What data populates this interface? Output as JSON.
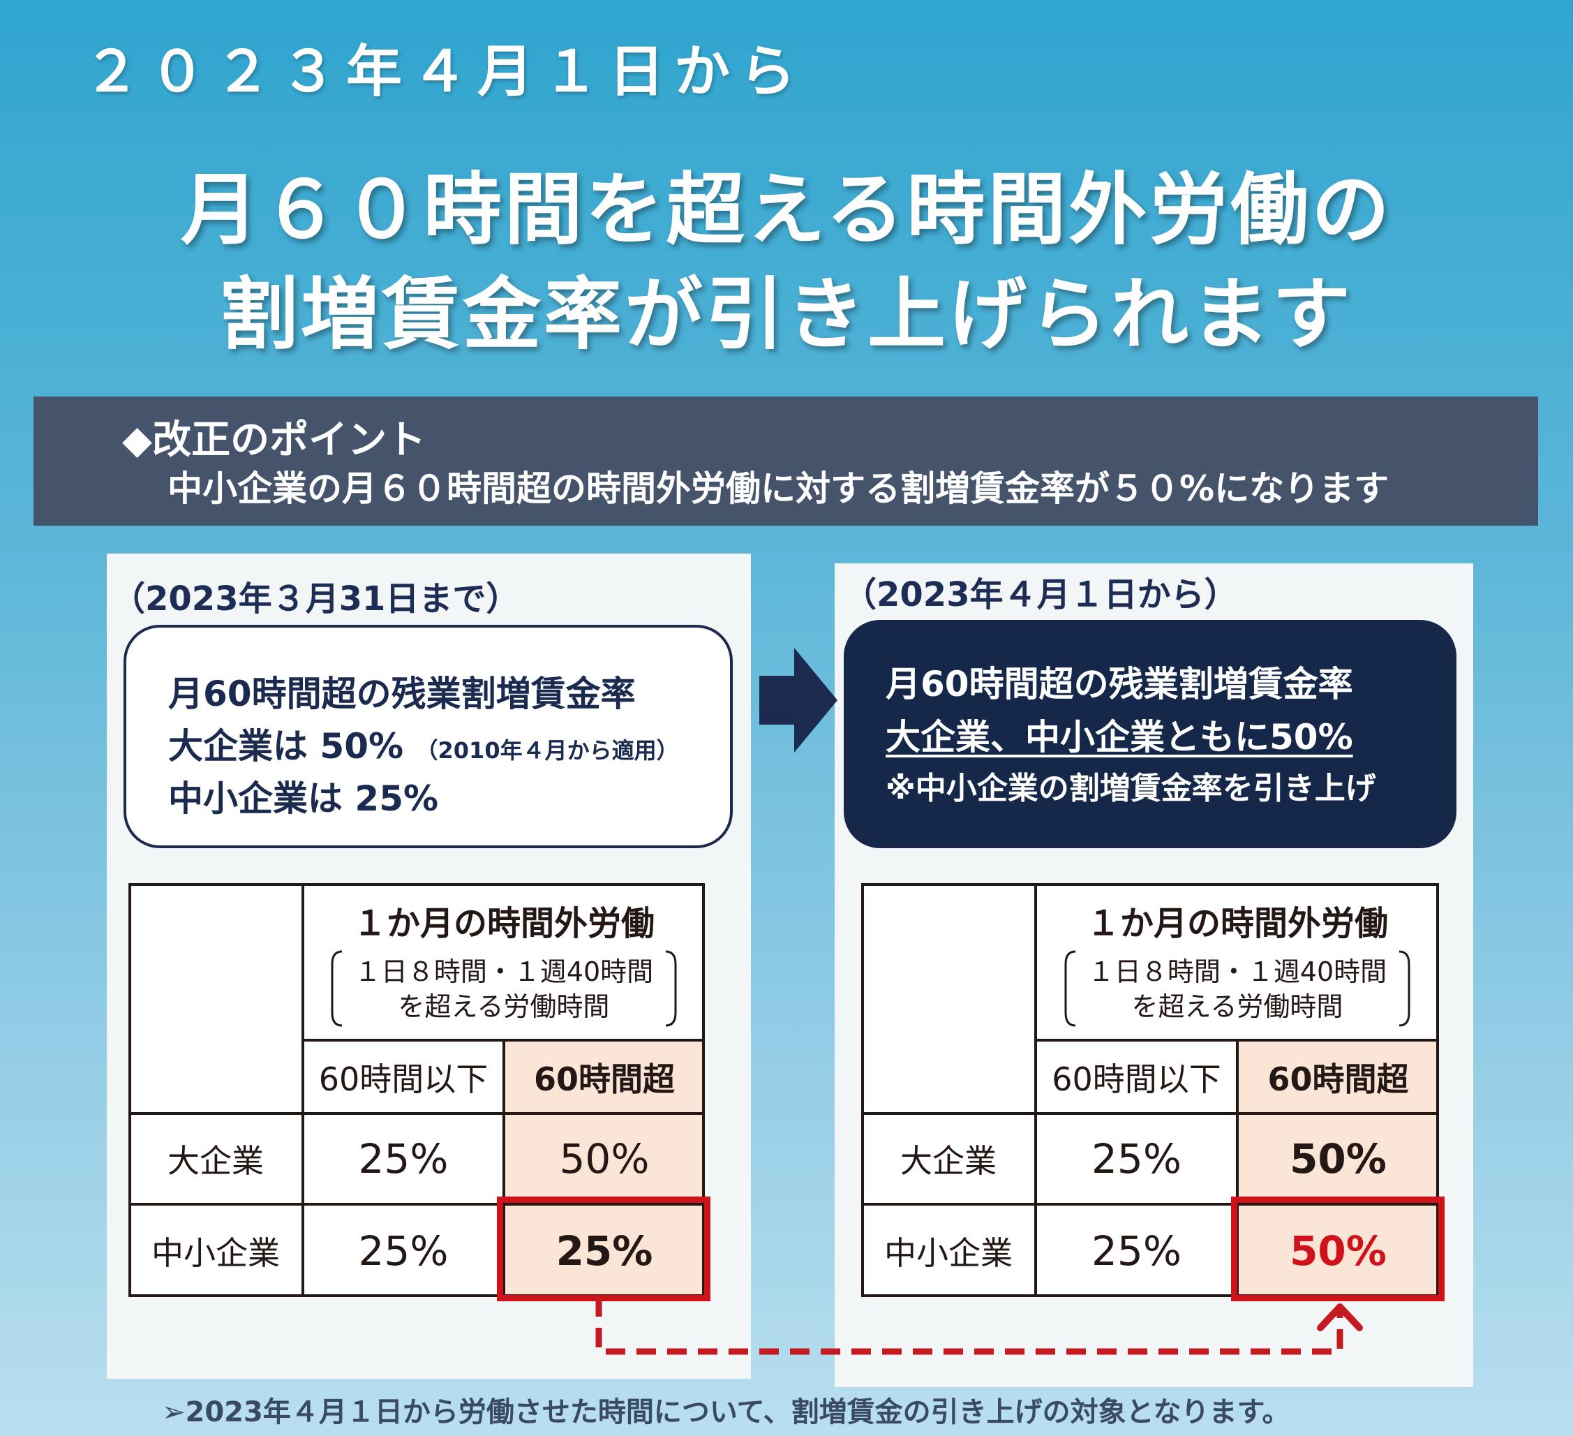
{
  "header": {
    "date": "２０２３年４月１日から",
    "title_line1": "月６０時間を超える時間外労働の",
    "title_line2": "割増賃金率が引き上げられます"
  },
  "point": {
    "heading": "◆改正のポイント",
    "body": "中小企業の月６０時間超の時間外労働に対する割増賃金率が５０%になります"
  },
  "before": {
    "caption": "（2023年３月31日まで）",
    "box_line1": "月60時間超の残業割増賃金率",
    "box_line2": "大企業は 50%",
    "box_line2_note": "（2010年４月から適用）",
    "box_line3": "中小企業は 25%"
  },
  "after": {
    "caption": "（2023年４月１日から）",
    "box_line1": "月60時間超の残業割増賃金率",
    "box_line2": "大企業、中小企業ともに50%",
    "box_line3": "※中小企業の割増賃金率を引き上げ"
  },
  "table": {
    "header_title": "１か月の時間外労働",
    "header_sub1": "１日８時間・１週40時間",
    "header_sub2": "を超える労働時間",
    "col_le60": "60時間以下",
    "col_gt60": "60時間超",
    "row_large": "大企業",
    "row_sme": "中小企業"
  },
  "before_values": {
    "large_le60": "25%",
    "large_gt60": "50%",
    "sme_le60": "25%",
    "sme_gt60": "25%"
  },
  "after_values": {
    "large_le60": "25%",
    "large_gt60": "50%",
    "sme_le60": "25%",
    "sme_gt60": "50%"
  },
  "footer": {
    "note": "➢2023年４月１日から労働させた時間について、割増賃金の引き上げの対象となります。"
  },
  "icons": [
    "right-arrow-icon",
    "dashed-connector-arrow-icon",
    "bracket-icon"
  ],
  "colors": {
    "accent_red": "#d0121b",
    "navy": "#16284a",
    "highlight": "#fbe5d6",
    "point_bg": "#45546b"
  }
}
